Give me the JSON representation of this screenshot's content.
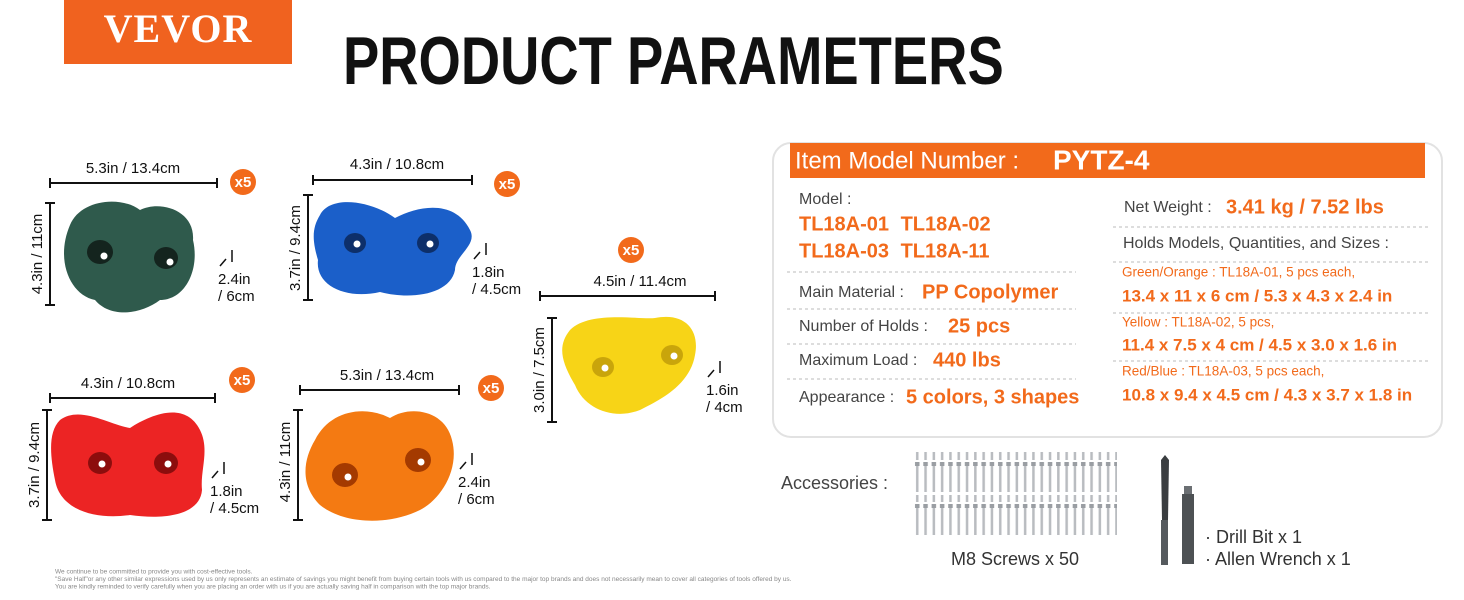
{
  "brand": "VEVOR",
  "title": "PRODUCT PARAMETERS",
  "holds": [
    {
      "color_name": "green",
      "quantity": "x5",
      "width": "5.3in / 13.4cm",
      "height": "4.3in / 11cm",
      "depth": [
        "2.4in",
        "/ 6cm"
      ]
    },
    {
      "color_name": "blue",
      "quantity": "x5",
      "width": "4.3in / 10.8cm",
      "height": "3.7in / 9.4cm",
      "depth": [
        "1.8in",
        "/ 4.5cm"
      ]
    },
    {
      "color_name": "yellow",
      "quantity": "x5",
      "width": "4.5in / 11.4cm",
      "height": "3.0in / 7.5cm",
      "depth": [
        "1.6in",
        "/ 4cm"
      ]
    },
    {
      "color_name": "red",
      "quantity": "x5",
      "width": "4.3in / 10.8cm",
      "height": "3.7in / 9.4cm",
      "depth": [
        "1.8in",
        "/ 4.5cm"
      ]
    },
    {
      "color_name": "orange",
      "quantity": "x5",
      "width": "5.3in / 13.4cm",
      "height": "4.3in / 11cm",
      "depth": [
        "2.4in",
        "/ 6cm"
      ]
    }
  ],
  "specs": {
    "header": {
      "label": "Item Model Number :",
      "value": "PYTZ-4"
    },
    "model": {
      "label": "Model :",
      "lines": [
        "TL18A-01 TL18A-02",
        "TL18A-03 TL18A-11"
      ]
    },
    "main_material": {
      "label": "Main Material :",
      "value": "PP Copolymer"
    },
    "number_of_holds": {
      "label": "Number of Holds :",
      "value": "25 pcs"
    },
    "maximum_load": {
      "label": "Maximum Load :",
      "value": "440 lbs"
    },
    "appearance": {
      "label": "Appearance :",
      "value": "5 colors, 3 shapes"
    },
    "net_weight": {
      "label": "Net Weight :",
      "value": "3.41 kg / 7.52 lbs"
    },
    "holds_sizes": {
      "label": "Holds Models, Quantities, and Sizes :",
      "rows": [
        {
          "models": "Green/Orange : TL18A-01, 5 pcs each,",
          "sizes": "13.4 x 11 x 6 cm / 5.3 x 4.3 x 2.4 in"
        },
        {
          "models": "Yellow : TL18A-02, 5 pcs,",
          "sizes": "11.4 x 7.5 x 4 cm / 4.5 x 3.0 x 1.6 in"
        },
        {
          "models": "Red/Blue : TL18A-03, 5 pcs each,",
          "sizes": "10.8 x 9.4 x 4.5 cm / 4.3 x 3.7 x 1.8 in"
        }
      ]
    }
  },
  "accessories": {
    "label": "Accessories :",
    "screws": "M8 Screws x 50",
    "drill_bit": "· Drill Bit x 1",
    "allen_wrench": "· Allen Wrench x 1"
  },
  "footnote": [
    "We continue to be committed to provide you with cost-effective tools.",
    "\"Save Half\"or any other similar expressions used by us only represents an estimate of savings you might benefit from buying certain tools with us compared to the major top brands and does not necessarily mean to cover all categories of tools offered by us.",
    "You are kindly reminded to verify carefully when you are placing an order with us if you are actually saving half in comparison with the top major brands."
  ]
}
